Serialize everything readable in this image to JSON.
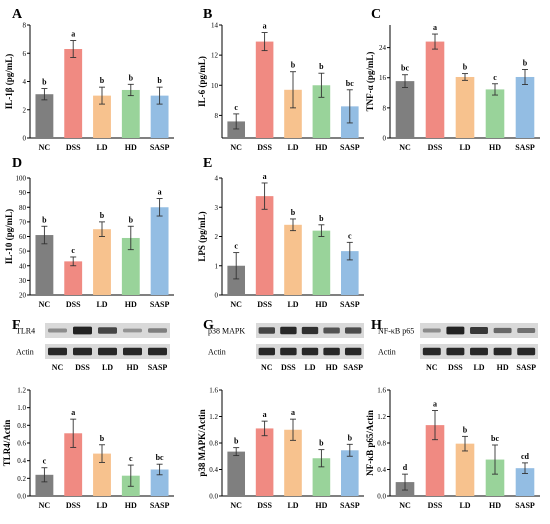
{
  "figure": {
    "colors": {
      "NC": "#7f7f7f",
      "DSS": "#f08a82",
      "LD": "#f7c28e",
      "HD": "#99d39a",
      "SASP": "#93bde3",
      "axis": "#000000",
      "blot_bg": "#d9d9d9",
      "blot_band": "#1a1a1a"
    }
  },
  "blots": [
    {
      "panel": "F",
      "rows": [
        {
          "label": "TLR4",
          "intensity": [
            0.2,
            0.95,
            0.7,
            0.15,
            0.3
          ]
        },
        {
          "label": "Actin",
          "intensity": [
            0.9,
            0.9,
            0.9,
            0.9,
            0.9
          ]
        }
      ],
      "lanes": [
        "NC",
        "DSS",
        "LD",
        "HD",
        "SASP"
      ]
    },
    {
      "panel": "G",
      "rows": [
        {
          "label": "p38 MAPK",
          "intensity": [
            0.7,
            0.9,
            0.85,
            0.6,
            0.65
          ]
        },
        {
          "label": "Actin",
          "intensity": [
            0.9,
            0.9,
            0.9,
            0.9,
            0.9
          ]
        }
      ],
      "lanes": [
        "NC",
        "DSS",
        "LD",
        "HD",
        "SASP"
      ]
    },
    {
      "panel": "H",
      "rows": [
        {
          "label": "NF-κB p65",
          "intensity": [
            0.2,
            0.95,
            0.8,
            0.45,
            0.4
          ]
        },
        {
          "label": "Actin",
          "intensity": [
            0.9,
            0.9,
            0.9,
            0.9,
            0.9
          ]
        }
      ],
      "lanes": [
        "NC",
        "DSS",
        "LD",
        "HD",
        "SASP"
      ]
    }
  ],
  "chart_data": [
    {
      "panel": "A",
      "type": "bar",
      "ylabel": "IL-1β (pg/mL)",
      "categories": [
        "NC",
        "DSS",
        "LD",
        "HD",
        "SASP"
      ],
      "values": [
        3.1,
        6.3,
        3.0,
        3.4,
        3.0
      ],
      "errors": [
        0.4,
        0.6,
        0.6,
        0.4,
        0.6
      ],
      "letters": [
        "b",
        "a",
        "b",
        "b",
        "b"
      ],
      "ylim": [
        0,
        8
      ],
      "yticks": [
        0,
        2,
        4,
        6,
        8
      ],
      "ticklabels": [
        "0",
        "2",
        "4",
        "6",
        "8"
      ]
    },
    {
      "panel": "B",
      "type": "bar",
      "ylabel": "IL-6 (pg/mL)",
      "categories": [
        "NC",
        "DSS",
        "LD",
        "HD",
        "SASP"
      ],
      "values": [
        7.6,
        12.9,
        9.7,
        10.0,
        8.6
      ],
      "errors": [
        0.5,
        0.6,
        1.2,
        0.8,
        1.1
      ],
      "letters": [
        "c",
        "a",
        "b",
        "b",
        "bc"
      ],
      "ylim": [
        6.5,
        14
      ],
      "yticks": [
        8,
        10,
        12,
        14
      ],
      "ticklabels": [
        "8",
        "10",
        "12",
        "14"
      ]
    },
    {
      "panel": "C",
      "type": "bar",
      "ylabel": "TNF-α (pg/mL)",
      "categories": [
        "NC",
        "DSS",
        "LD",
        "HD",
        "SASP"
      ],
      "values": [
        15.1,
        25.6,
        16.2,
        12.9,
        16.2
      ],
      "errors": [
        1.7,
        2.0,
        0.9,
        1.5,
        2.0
      ],
      "letters": [
        "bc",
        "a",
        "b",
        "c",
        "b"
      ],
      "ylim": [
        0,
        30
      ],
      "yticks": [
        0,
        8,
        16,
        24
      ],
      "ticklabels": [
        "0",
        "8",
        "16",
        "24"
      ]
    },
    {
      "panel": "D",
      "type": "bar",
      "ylabel": "IL-10 (pg/mL)",
      "categories": [
        "NC",
        "DSS",
        "LD",
        "HD",
        "SASP"
      ],
      "values": [
        61,
        43,
        65,
        59,
        80
      ],
      "errors": [
        6,
        3,
        5,
        8,
        6
      ],
      "letters": [
        "b",
        "c",
        "b",
        "b",
        "a"
      ],
      "ylim": [
        20,
        100
      ],
      "yticks": [
        20,
        30,
        40,
        50,
        60,
        70,
        80,
        90,
        100
      ],
      "ticklabels": [
        "20",
        "30",
        "40",
        "50",
        "60",
        "70",
        "80",
        "90",
        "100"
      ]
    },
    {
      "panel": "E",
      "type": "bar",
      "ylabel": "LPS (pg/mL)",
      "categories": [
        "NC",
        "DSS",
        "LD",
        "HD",
        "SASP"
      ],
      "values": [
        1.0,
        3.38,
        2.4,
        2.2,
        1.5
      ],
      "errors": [
        0.45,
        0.45,
        0.2,
        0.2,
        0.3
      ],
      "letters": [
        "c",
        "a",
        "b",
        "b",
        "c"
      ],
      "ylim": [
        0,
        4
      ],
      "yticks": [
        0,
        1,
        2,
        3,
        4
      ],
      "ticklabels": [
        "0",
        "1",
        "2",
        "3",
        "4"
      ]
    },
    {
      "panel": "F",
      "type": "bar",
      "ylabel": "TLR4/Actin",
      "categories": [
        "NC",
        "DSS",
        "LD",
        "HD",
        "SASP"
      ],
      "values": [
        0.24,
        0.71,
        0.48,
        0.23,
        0.3
      ],
      "errors": [
        0.08,
        0.16,
        0.1,
        0.12,
        0.06
      ],
      "letters": [
        "c",
        "a",
        "b",
        "c",
        "bc"
      ],
      "ylim": [
        0,
        1.2
      ],
      "yticks": [
        0,
        0.2,
        0.4,
        0.6,
        0.8,
        1.0,
        1.2
      ],
      "ticklabels": [
        "0.0",
        "0.2",
        "0.4",
        "0.6",
        "0.8",
        "1.0",
        "1.2"
      ]
    },
    {
      "panel": "G",
      "type": "bar",
      "ylabel": "p38 MAPK/Actin",
      "categories": [
        "NC",
        "DSS",
        "LD",
        "HD",
        "SASP"
      ],
      "values": [
        0.67,
        1.02,
        1.0,
        0.57,
        0.69
      ],
      "errors": [
        0.06,
        0.11,
        0.16,
        0.13,
        0.09
      ],
      "letters": [
        "b",
        "a",
        "a",
        "b",
        "b"
      ],
      "ylim": [
        0,
        1.6
      ],
      "yticks": [
        0,
        0.4,
        0.8,
        1.2,
        1.6
      ],
      "ticklabels": [
        "0.0",
        "0.4",
        "0.8",
        "1.2",
        "1.6"
      ]
    },
    {
      "panel": "H",
      "type": "bar",
      "ylabel": "NF-κB p65/Actin",
      "categories": [
        "NC",
        "DSS",
        "LD",
        "HD",
        "SASP"
      ],
      "values": [
        0.21,
        1.07,
        0.79,
        0.55,
        0.42
      ],
      "errors": [
        0.12,
        0.22,
        0.11,
        0.22,
        0.08
      ],
      "letters": [
        "d",
        "a",
        "b",
        "bc",
        "cd"
      ],
      "ylim": [
        0,
        1.6
      ],
      "yticks": [
        0,
        0.4,
        0.8,
        1.2,
        1.6
      ],
      "ticklabels": [
        "0.0",
        "0.4",
        "0.8",
        "1.2",
        "1.6"
      ]
    }
  ]
}
